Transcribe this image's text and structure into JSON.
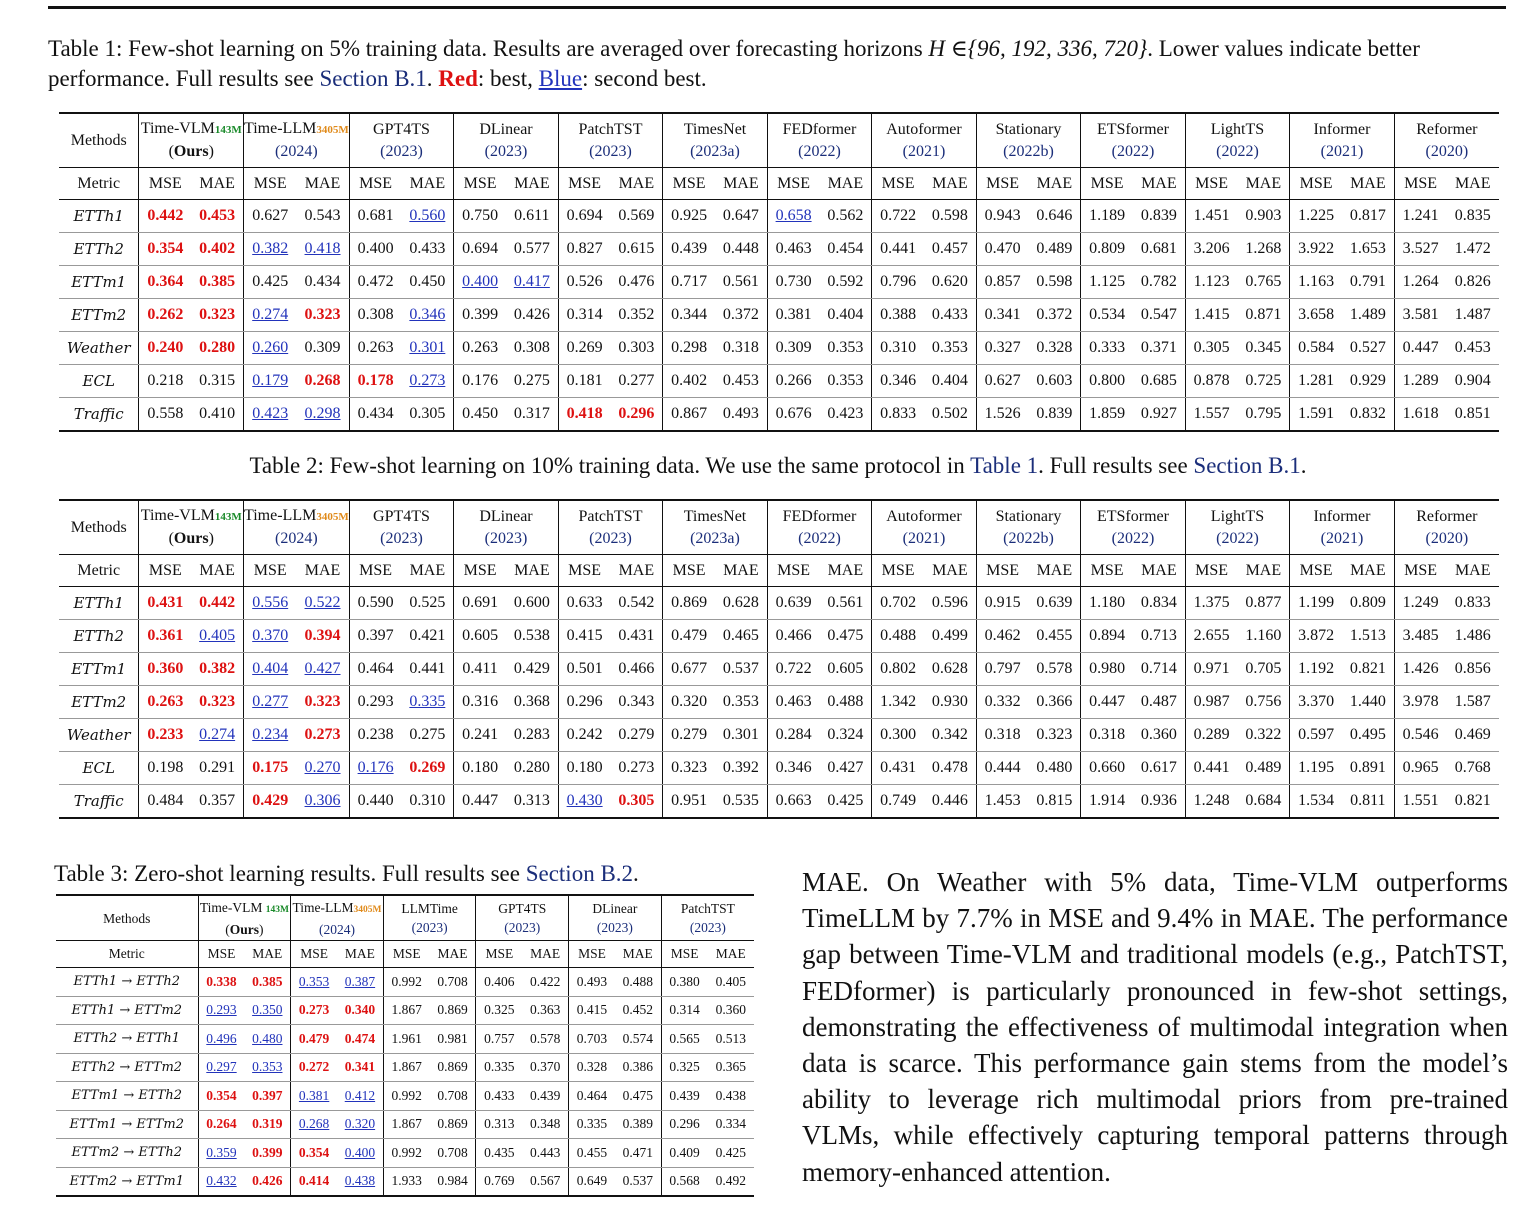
{
  "caption1": {
    "label": "Table 1:",
    "text": " Few-shot learning on 5% training data. Results are averaged over forecasting horizons ",
    "math": "H ∈{96, 192, 336, 720}",
    "text2": ". Lower values indicate better performance. Full results see ",
    "link": "Section B.1",
    "text3": ". ",
    "red_word": "Red",
    "text4": ": best, ",
    "blue_word": "Blue",
    "text5": ": second best."
  },
  "caption2": {
    "label": "Table 2:",
    "text": " Few-shot learning on 10% training data. We use the same protocol in ",
    "link1": "Table 1",
    "text2": ". Full results see ",
    "link2": "Section B.1",
    "text3": "."
  },
  "caption3": {
    "label": "Table 3:",
    "text": " Zero-shot learning results. Full results see ",
    "link": "Section B.2",
    "text2": "."
  },
  "big_header": {
    "methods_label": "Methods",
    "metric_label": "Metric",
    "mse": "MSE",
    "mae": "MAE",
    "models": [
      {
        "name": "Time-VLM",
        "sub": "143M",
        "sub_color": "green",
        "year": "Ours"
      },
      {
        "name": "Time-LLM",
        "sub": "3405M",
        "sub_color": "orange",
        "year": "2024"
      },
      {
        "name": "GPT4TS",
        "year": "2023"
      },
      {
        "name": "DLinear",
        "year": "2023"
      },
      {
        "name": "PatchTST",
        "year": "2023"
      },
      {
        "name": "TimesNet",
        "year": "2023a"
      },
      {
        "name": "FEDformer",
        "year": "2022"
      },
      {
        "name": "Autoformer",
        "year": "2021"
      },
      {
        "name": "Stationary",
        "year": "2022b"
      },
      {
        "name": "ETSformer",
        "year": "2022"
      },
      {
        "name": "LightTS",
        "year": "2022"
      },
      {
        "name": "Informer",
        "year": "2021"
      },
      {
        "name": "Reformer",
        "year": "2020"
      }
    ]
  },
  "table1": [
    {
      "ds": "ETTh1",
      "v": [
        "0.442",
        "0.453",
        "0.627",
        "0.543",
        "0.681",
        "0.560",
        "0.750",
        "0.611",
        "0.694",
        "0.569",
        "0.925",
        "0.647",
        "0.658",
        "0.562",
        "0.722",
        "0.598",
        "0.943",
        "0.646",
        "1.189",
        "0.839",
        "1.451",
        "0.903",
        "1.225",
        "0.817",
        "1.241",
        "0.835"
      ],
      "red": [
        0,
        1
      ],
      "blue": [
        5,
        12
      ]
    },
    {
      "ds": "ETTh2",
      "v": [
        "0.354",
        "0.402",
        "0.382",
        "0.418",
        "0.400",
        "0.433",
        "0.694",
        "0.577",
        "0.827",
        "0.615",
        "0.439",
        "0.448",
        "0.463",
        "0.454",
        "0.441",
        "0.457",
        "0.470",
        "0.489",
        "0.809",
        "0.681",
        "3.206",
        "1.268",
        "3.922",
        "1.653",
        "3.527",
        "1.472"
      ],
      "red": [
        0,
        1
      ],
      "blue": [
        2,
        3
      ]
    },
    {
      "ds": "ETTm1",
      "v": [
        "0.364",
        "0.385",
        "0.425",
        "0.434",
        "0.472",
        "0.450",
        "0.400",
        "0.417",
        "0.526",
        "0.476",
        "0.717",
        "0.561",
        "0.730",
        "0.592",
        "0.796",
        "0.620",
        "0.857",
        "0.598",
        "1.125",
        "0.782",
        "1.123",
        "0.765",
        "1.163",
        "0.791",
        "1.264",
        "0.826"
      ],
      "red": [
        0,
        1
      ],
      "blue": [
        6,
        7
      ]
    },
    {
      "ds": "ETTm2",
      "v": [
        "0.262",
        "0.323",
        "0.274",
        "0.323",
        "0.308",
        "0.346",
        "0.399",
        "0.426",
        "0.314",
        "0.352",
        "0.344",
        "0.372",
        "0.381",
        "0.404",
        "0.388",
        "0.433",
        "0.341",
        "0.372",
        "0.534",
        "0.547",
        "1.415",
        "0.871",
        "3.658",
        "1.489",
        "3.581",
        "1.487"
      ],
      "red": [
        0,
        1,
        3
      ],
      "blue": [
        2,
        5
      ]
    },
    {
      "ds": "Weather",
      "v": [
        "0.240",
        "0.280",
        "0.260",
        "0.309",
        "0.263",
        "0.301",
        "0.263",
        "0.308",
        "0.269",
        "0.303",
        "0.298",
        "0.318",
        "0.309",
        "0.353",
        "0.310",
        "0.353",
        "0.327",
        "0.328",
        "0.333",
        "0.371",
        "0.305",
        "0.345",
        "0.584",
        "0.527",
        "0.447",
        "0.453"
      ],
      "red": [
        0,
        1
      ],
      "blue": [
        2,
        5
      ]
    },
    {
      "ds": "ECL",
      "v": [
        "0.218",
        "0.315",
        "0.179",
        "0.268",
        "0.178",
        "0.273",
        "0.176",
        "0.275",
        "0.181",
        "0.277",
        "0.402",
        "0.453",
        "0.266",
        "0.353",
        "0.346",
        "0.404",
        "0.627",
        "0.603",
        "0.800",
        "0.685",
        "0.878",
        "0.725",
        "1.281",
        "0.929",
        "1.289",
        "0.904"
      ],
      "red": [
        3,
        4
      ],
      "blue": [
        2,
        5
      ]
    },
    {
      "ds": "Traffic",
      "v": [
        "0.558",
        "0.410",
        "0.423",
        "0.298",
        "0.434",
        "0.305",
        "0.450",
        "0.317",
        "0.418",
        "0.296",
        "0.867",
        "0.493",
        "0.676",
        "0.423",
        "0.833",
        "0.502",
        "1.526",
        "0.839",
        "1.859",
        "0.927",
        "1.557",
        "0.795",
        "1.591",
        "0.832",
        "1.618",
        "0.851"
      ],
      "red": [
        8,
        9
      ],
      "blue": [
        2,
        3
      ]
    }
  ],
  "table2": [
    {
      "ds": "ETTh1",
      "v": [
        "0.431",
        "0.442",
        "0.556",
        "0.522",
        "0.590",
        "0.525",
        "0.691",
        "0.600",
        "0.633",
        "0.542",
        "0.869",
        "0.628",
        "0.639",
        "0.561",
        "0.702",
        "0.596",
        "0.915",
        "0.639",
        "1.180",
        "0.834",
        "1.375",
        "0.877",
        "1.199",
        "0.809",
        "1.249",
        "0.833"
      ],
      "red": [
        0,
        1
      ],
      "blue": [
        2,
        3
      ]
    },
    {
      "ds": "ETTh2",
      "v": [
        "0.361",
        "0.405",
        "0.370",
        "0.394",
        "0.397",
        "0.421",
        "0.605",
        "0.538",
        "0.415",
        "0.431",
        "0.479",
        "0.465",
        "0.466",
        "0.475",
        "0.488",
        "0.499",
        "0.462",
        "0.455",
        "0.894",
        "0.713",
        "2.655",
        "1.160",
        "3.872",
        "1.513",
        "3.485",
        "1.486"
      ],
      "red": [
        0,
        3
      ],
      "blue": [
        1,
        2
      ]
    },
    {
      "ds": "ETTm1",
      "v": [
        "0.360",
        "0.382",
        "0.404",
        "0.427",
        "0.464",
        "0.441",
        "0.411",
        "0.429",
        "0.501",
        "0.466",
        "0.677",
        "0.537",
        "0.722",
        "0.605",
        "0.802",
        "0.628",
        "0.797",
        "0.578",
        "0.980",
        "0.714",
        "0.971",
        "0.705",
        "1.192",
        "0.821",
        "1.426",
        "0.856"
      ],
      "red": [
        0,
        1
      ],
      "blue": [
        2,
        3
      ]
    },
    {
      "ds": "ETTm2",
      "v": [
        "0.263",
        "0.323",
        "0.277",
        "0.323",
        "0.293",
        "0.335",
        "0.316",
        "0.368",
        "0.296",
        "0.343",
        "0.320",
        "0.353",
        "0.463",
        "0.488",
        "1.342",
        "0.930",
        "0.332",
        "0.366",
        "0.447",
        "0.487",
        "0.987",
        "0.756",
        "3.370",
        "1.440",
        "3.978",
        "1.587"
      ],
      "red": [
        0,
        1,
        3
      ],
      "blue": [
        2,
        5
      ]
    },
    {
      "ds": "Weather",
      "v": [
        "0.233",
        "0.274",
        "0.234",
        "0.273",
        "0.238",
        "0.275",
        "0.241",
        "0.283",
        "0.242",
        "0.279",
        "0.279",
        "0.301",
        "0.284",
        "0.324",
        "0.300",
        "0.342",
        "0.318",
        "0.323",
        "0.318",
        "0.360",
        "0.289",
        "0.322",
        "0.597",
        "0.495",
        "0.546",
        "0.469"
      ],
      "red": [
        0,
        3
      ],
      "blue": [
        1,
        2
      ]
    },
    {
      "ds": "ECL",
      "v": [
        "0.198",
        "0.291",
        "0.175",
        "0.270",
        "0.176",
        "0.269",
        "0.180",
        "0.280",
        "0.180",
        "0.273",
        "0.323",
        "0.392",
        "0.346",
        "0.427",
        "0.431",
        "0.478",
        "0.444",
        "0.480",
        "0.660",
        "0.617",
        "0.441",
        "0.489",
        "1.195",
        "0.891",
        "0.965",
        "0.768"
      ],
      "red": [
        2,
        5
      ],
      "blue": [
        3,
        4
      ]
    },
    {
      "ds": "Traffic",
      "v": [
        "0.484",
        "0.357",
        "0.429",
        "0.306",
        "0.440",
        "0.310",
        "0.447",
        "0.313",
        "0.430",
        "0.305",
        "0.951",
        "0.535",
        "0.663",
        "0.425",
        "0.749",
        "0.446",
        "1.453",
        "0.815",
        "1.914",
        "0.936",
        "1.248",
        "0.684",
        "1.534",
        "0.811",
        "1.551",
        "0.821"
      ],
      "red": [
        2,
        9
      ],
      "blue": [
        3,
        8
      ]
    }
  ],
  "table3": {
    "methods_label": "Methods",
    "metric_label": "Metric",
    "mse": "MSE",
    "mae": "MAE",
    "models": [
      {
        "name": "Time-VLM ",
        "sub": "143M",
        "sub_color": "green",
        "year": "Ours"
      },
      {
        "name": "Time-LLM",
        "sub": "3405M",
        "sub_color": "orange",
        "year": "2024"
      },
      {
        "name": "LLMTime",
        "year": "2023"
      },
      {
        "name": "GPT4TS",
        "year": "2023"
      },
      {
        "name": "DLinear",
        "year": "2023"
      },
      {
        "name": "PatchTST",
        "year": "2023"
      }
    ],
    "rows": [
      {
        "ds": "ETTh1 → ETTh2",
        "v": [
          "0.338",
          "0.385",
          "0.353",
          "0.387",
          "0.992",
          "0.708",
          "0.406",
          "0.422",
          "0.493",
          "0.488",
          "0.380",
          "0.405"
        ],
        "red": [
          0,
          1
        ],
        "blue": [
          2,
          3
        ]
      },
      {
        "ds": "ETTh1 → ETTm2",
        "v": [
          "0.293",
          "0.350",
          "0.273",
          "0.340",
          "1.867",
          "0.869",
          "0.325",
          "0.363",
          "0.415",
          "0.452",
          "0.314",
          "0.360"
        ],
        "red": [
          2,
          3
        ],
        "blue": [
          0,
          1
        ]
      },
      {
        "ds": "ETTh2 → ETTh1",
        "v": [
          "0.496",
          "0.480",
          "0.479",
          "0.474",
          "1.961",
          "0.981",
          "0.757",
          "0.578",
          "0.703",
          "0.574",
          "0.565",
          "0.513"
        ],
        "red": [
          2,
          3
        ],
        "blue": [
          0,
          1
        ]
      },
      {
        "ds": "ETTh2 → ETTm2",
        "v": [
          "0.297",
          "0.353",
          "0.272",
          "0.341",
          "1.867",
          "0.869",
          "0.335",
          "0.370",
          "0.328",
          "0.386",
          "0.325",
          "0.365"
        ],
        "red": [
          2,
          3
        ],
        "blue": [
          0,
          1
        ]
      },
      {
        "ds": "ETTm1 → ETTh2",
        "v": [
          "0.354",
          "0.397",
          "0.381",
          "0.412",
          "0.992",
          "0.708",
          "0.433",
          "0.439",
          "0.464",
          "0.475",
          "0.439",
          "0.438"
        ],
        "red": [
          0,
          1
        ],
        "blue": [
          2,
          3
        ]
      },
      {
        "ds": "ETTm1 → ETTm2",
        "v": [
          "0.264",
          "0.319",
          "0.268",
          "0.320",
          "1.867",
          "0.869",
          "0.313",
          "0.348",
          "0.335",
          "0.389",
          "0.296",
          "0.334"
        ],
        "red": [
          0,
          1
        ],
        "blue": [
          2,
          3
        ]
      },
      {
        "ds": "ETTm2 → ETTh2",
        "v": [
          "0.359",
          "0.399",
          "0.354",
          "0.400",
          "0.992",
          "0.708",
          "0.435",
          "0.443",
          "0.455",
          "0.471",
          "0.409",
          "0.425"
        ],
        "red": [
          1,
          2
        ],
        "blue": [
          0,
          3
        ]
      },
      {
        "ds": "ETTm2 → ETTm1",
        "v": [
          "0.432",
          "0.426",
          "0.414",
          "0.438",
          "1.933",
          "0.984",
          "0.769",
          "0.567",
          "0.649",
          "0.537",
          "0.568",
          "0.492"
        ],
        "red": [
          1,
          2
        ],
        "blue": [
          0,
          3
        ]
      }
    ]
  },
  "paragraph": "MAE. On Weather with 5% data, Time-VLM outperforms TimeLLM by 7.7% in MSE and 9.4% in MAE. The performance gap between Time-VLM and traditional models (e.g., PatchTST, FEDformer) is particularly pronounced in few-shot settings, demonstrating the effectiveness of multimodal integration when data is scarce. This performance gain stems from the model’s ability to leverage rich multimodal priors from pre-trained VLMs, while effectively capturing temporal patterns through memory-enhanced attention."
}
